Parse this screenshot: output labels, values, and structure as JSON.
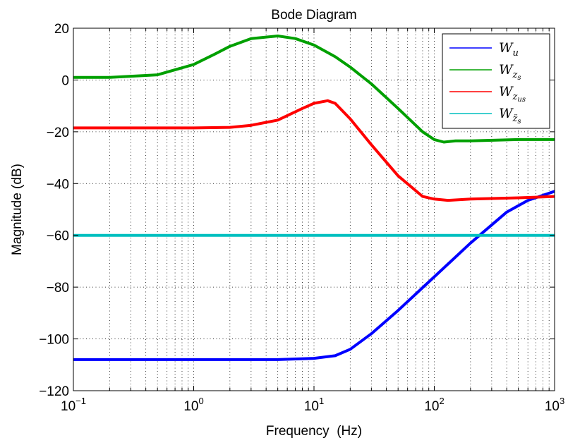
{
  "chart_data": {
    "type": "line",
    "title": "Bode Diagram",
    "xlabel": "Frequency  (Hz)",
    "ylabel": "Magnitude (dB)",
    "x_scale": "log",
    "xlim": [
      0.1,
      1000
    ],
    "ylim": [
      -120,
      20
    ],
    "x_ticks": [
      {
        "base": "10",
        "exp": "−1"
      },
      {
        "base": "10",
        "exp": "0"
      },
      {
        "base": "10",
        "exp": "1"
      },
      {
        "base": "10",
        "exp": "2"
      },
      {
        "base": "10",
        "exp": "3"
      }
    ],
    "y_ticks": [
      "20",
      "0",
      "−20",
      "−40",
      "−60",
      "−80",
      "−100",
      "−120"
    ],
    "grid": true,
    "legend_position": "top-right",
    "series": [
      {
        "name": "W",
        "subscript": "u",
        "color": "#0000ff",
        "x": [
          0.1,
          1,
          5,
          10,
          15,
          20,
          30,
          50,
          100,
          200,
          400,
          600,
          1000
        ],
        "y": [
          -108,
          -108,
          -108,
          -107.5,
          -106.5,
          -104,
          -98,
          -89,
          -76,
          -63,
          -51,
          -46.5,
          -43
        ]
      },
      {
        "name": "W",
        "subscript": "z",
        "subsub": "s",
        "color": "#00a000",
        "x": [
          0.1,
          0.2,
          0.5,
          1,
          1.5,
          2,
          3,
          5,
          7,
          10,
          15,
          20,
          30,
          50,
          80,
          100,
          120,
          150,
          200,
          500,
          1000
        ],
        "y": [
          1,
          1,
          2,
          6,
          10,
          13,
          16,
          17,
          16,
          13.5,
          9,
          5,
          -1.5,
          -11,
          -20,
          -23,
          -24,
          -23.5,
          -23.5,
          -23,
          -23
        ]
      },
      {
        "name": "W",
        "subscript": "z",
        "subsub": "us",
        "color": "#ff0000",
        "x": [
          0.1,
          0.5,
          1,
          2,
          3,
          5,
          8,
          10,
          13,
          15,
          20,
          30,
          50,
          80,
          100,
          130,
          200,
          500,
          1000
        ],
        "y": [
          -18.5,
          -18.5,
          -18.5,
          -18.3,
          -17.5,
          -15.5,
          -11,
          -9,
          -8,
          -9,
          -15,
          -25,
          -37,
          -45,
          -46,
          -46.5,
          -46,
          -45.5,
          -45
        ]
      },
      {
        "name": "W",
        "subscript": "z̈",
        "subsub": "s",
        "color": "#00bfbf",
        "x": [
          0.1,
          1000
        ],
        "y": [
          -60,
          -60
        ]
      }
    ]
  }
}
